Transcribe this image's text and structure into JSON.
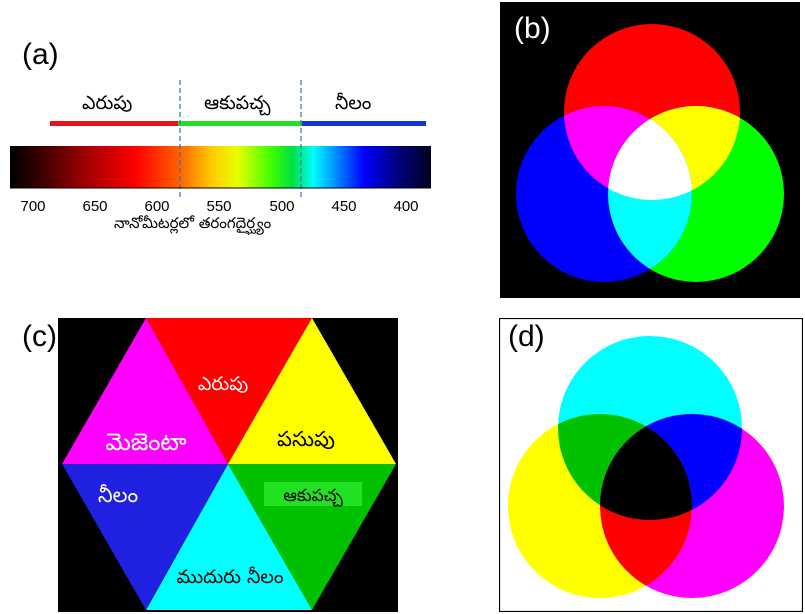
{
  "panels": {
    "a": {
      "label": "(a)",
      "band_labels": [
        "ఎరుపు",
        "ఆకుపచ్చ",
        "నీలం"
      ],
      "band_colors": [
        "#e8141c",
        "#22e02a",
        "#1434e0"
      ],
      "axis_title": "నానోమీటర్లలో తరంగదైర్ఘ్యం",
      "ticks": [
        700,
        650,
        600,
        550,
        500,
        450,
        400
      ],
      "axis_range_nm": [
        718,
        382
      ],
      "boundaries_nm": [
        582,
        490
      ]
    },
    "b": {
      "label": "(b)",
      "mode": "additive",
      "circle_colors": [
        "#ff0000",
        "#00ff00",
        "#0000ff"
      ],
      "overlap_colors": {
        "red_green": "#ffff00",
        "red_blue": "#ff00ff",
        "green_blue": "#00ffff",
        "all": "#ffffff"
      }
    },
    "c": {
      "label": "(c)",
      "segments": [
        {
          "label": "ఎరుపు",
          "color": "#ff0000"
        },
        {
          "label": "పసుపు",
          "color": "#ffff00"
        },
        {
          "label": "ఆకుపచ్చ",
          "color": "#00c000"
        },
        {
          "label": "ముదురు నీలం",
          "color": "#00ffff"
        },
        {
          "label": "నీలం",
          "color": "#2020e0"
        },
        {
          "label": "మెజెంటా",
          "color": "#ff00ff"
        }
      ]
    },
    "d": {
      "label": "(d)",
      "mode": "subtractive",
      "circle_colors": [
        "#00ffff",
        "#ffff00",
        "#ff00ff"
      ],
      "overlap_colors": {
        "cyan_yellow": "#00c000",
        "cyan_magenta": "#0000ff",
        "yellow_magenta": "#ff0000",
        "all": "#000000"
      }
    }
  }
}
